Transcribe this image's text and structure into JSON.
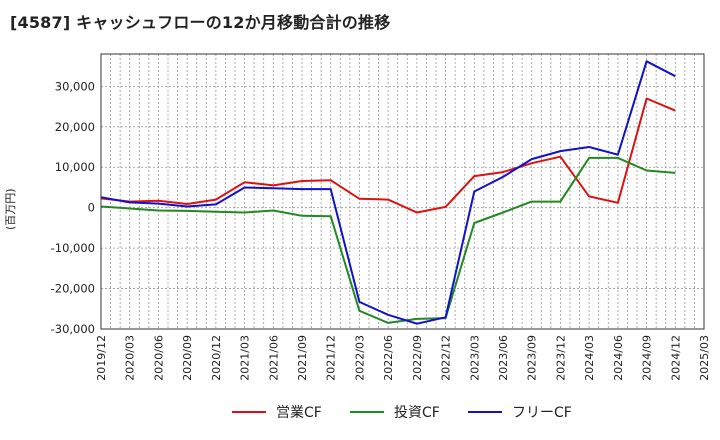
{
  "title": "[4587]  キャッシュフローの12か月移動合計の推移",
  "colors": {
    "operating": "#dd1111",
    "investing": "#228822",
    "free": "#1111cc",
    "grid": "#999999"
  },
  "chart_data": {
    "type": "line",
    "title": "[4587]  キャッシュフローの12か月移動合計の推移",
    "ylabel": "(百万円)",
    "xlabel": "",
    "ylim": [
      -30000,
      38000
    ],
    "yticks": [
      -30000,
      -20000,
      -10000,
      0,
      10000,
      20000,
      30000
    ],
    "ytick_labels": [
      "-30,000",
      "-20,000",
      "-10,000",
      "0",
      "10,000",
      "20,000",
      "30,000"
    ],
    "x_tick_labels": [
      "2019/12",
      "2020/03",
      "2020/06",
      "2020/09",
      "2020/12",
      "2021/03",
      "2021/06",
      "2021/09",
      "2021/12",
      "2022/03",
      "2022/06",
      "2022/09",
      "2022/12",
      "2023/03",
      "2023/06",
      "2023/09",
      "2023/12",
      "2024/03",
      "2024/06",
      "2024/09",
      "2024/12",
      "2025/03"
    ],
    "categories": [
      "2019/12",
      "2020/03",
      "2020/06",
      "2020/09",
      "2020/12",
      "2021/03",
      "2021/06",
      "2021/09",
      "2021/12",
      "2022/03",
      "2022/06",
      "2022/09",
      "2022/12",
      "2023/03",
      "2023/06",
      "2023/09",
      "2023/12",
      "2024/03",
      "2024/06",
      "2024/09",
      "2024/12"
    ],
    "series": [
      {
        "name": "営業CF",
        "color": "#dd1111",
        "values": [
          2300,
          1500,
          1700,
          900,
          2000,
          6300,
          5500,
          6600,
          6800,
          2200,
          2000,
          -1200,
          200,
          7800,
          8800,
          11000,
          12600,
          2800,
          1200,
          27000,
          24000
        ]
      },
      {
        "name": "投資CF",
        "color": "#228822",
        "values": [
          300,
          -200,
          -700,
          -800,
          -1000,
          -1200,
          -700,
          -2000,
          -2100,
          -25500,
          -28500,
          -27500,
          -27300,
          -3800,
          -1200,
          1500,
          1500,
          12300,
          12300,
          9200,
          8600
        ]
      },
      {
        "name": "フリーCF",
        "color": "#1111cc",
        "values": [
          2600,
          1300,
          1000,
          300,
          800,
          5000,
          4800,
          4600,
          4600,
          -23300,
          -26500,
          -28700,
          -27100,
          4000,
          7600,
          12000,
          14000,
          15000,
          13100,
          36200,
          32500
        ]
      }
    ],
    "grid": true,
    "legend_position": "bottom-center"
  }
}
